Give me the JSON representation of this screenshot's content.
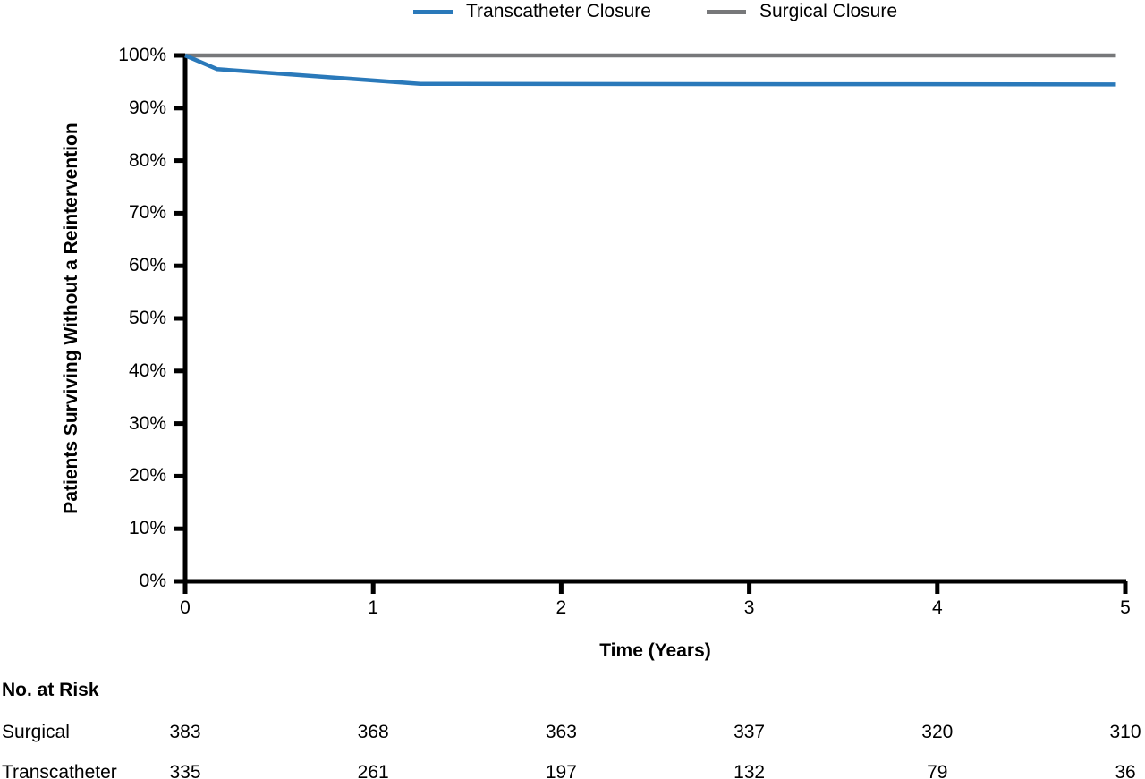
{
  "legend": {
    "items": [
      {
        "label": "Transcatheter Closure",
        "color": "#2a79ba"
      },
      {
        "label": "Surgical Closure",
        "color": "#77787a"
      }
    ]
  },
  "chart_data": {
    "type": "line",
    "title": "",
    "xlabel": "Time (Years)",
    "ylabel": "Patients Surviving Without a Reintervention",
    "xlim": [
      0,
      5
    ],
    "ylim": [
      0,
      100
    ],
    "grid": false,
    "legend_position": "top-center",
    "axis_color": "#000000",
    "x_ticks": [
      {
        "value": 0,
        "label": "0"
      },
      {
        "value": 1,
        "label": "1"
      },
      {
        "value": 2,
        "label": "2"
      },
      {
        "value": 3,
        "label": "3"
      },
      {
        "value": 4,
        "label": "4"
      },
      {
        "value": 5,
        "label": "5"
      }
    ],
    "y_ticks": [
      {
        "value": 0,
        "label": "0%"
      },
      {
        "value": 10,
        "label": "10%"
      },
      {
        "value": 20,
        "label": "20%"
      },
      {
        "value": 30,
        "label": "30%"
      },
      {
        "value": 40,
        "label": "40%"
      },
      {
        "value": 50,
        "label": "50%"
      },
      {
        "value": 60,
        "label": "60%"
      },
      {
        "value": 70,
        "label": "70%"
      },
      {
        "value": 80,
        "label": "80%"
      },
      {
        "value": 90,
        "label": "90%"
      },
      {
        "value": 100,
        "label": "100%"
      }
    ],
    "series": [
      {
        "name": "Transcatheter Closure",
        "color": "#2a79ba",
        "points": [
          [
            0,
            100
          ],
          [
            0.17,
            97.4
          ],
          [
            1.25,
            94.6
          ],
          [
            4.95,
            94.5
          ]
        ]
      },
      {
        "name": "Surgical Closure",
        "color": "#77787a",
        "points": [
          [
            0,
            100
          ],
          [
            4.95,
            100
          ]
        ]
      }
    ]
  },
  "risk_table": {
    "heading": "No. at Risk",
    "time_values": [
      0,
      1,
      2,
      3,
      4,
      5
    ],
    "rows": [
      {
        "label": "Surgical",
        "values": [
          "383",
          "368",
          "363",
          "337",
          "320",
          "310"
        ]
      },
      {
        "label": "Transcatheter",
        "values": [
          "335",
          "261",
          "197",
          "132",
          "79",
          "36"
        ]
      }
    ]
  }
}
